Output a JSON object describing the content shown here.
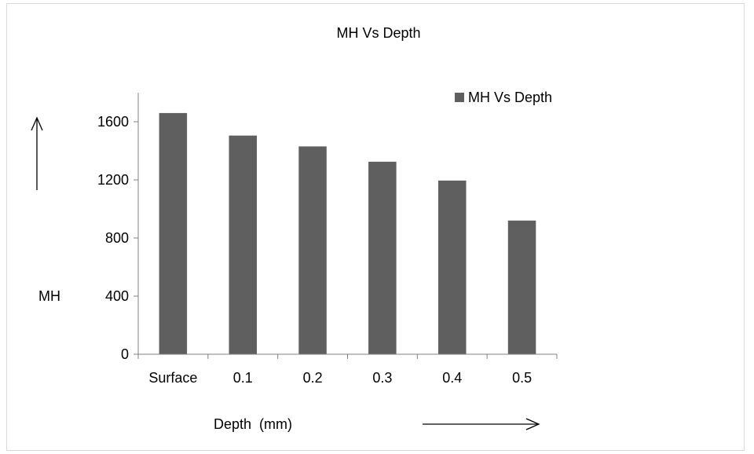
{
  "chart_data": {
    "type": "bar",
    "title": "MH Vs Depth",
    "xlabel": "Depth  (mm)",
    "ylabel": "MH",
    "categories": [
      "Surface",
      "0.1",
      "0.2",
      "0.3",
      "0.4",
      "0.5"
    ],
    "series": [
      {
        "name": "MH Vs Depth",
        "values": [
          1660,
          1505,
          1430,
          1325,
          1195,
          920
        ]
      }
    ],
    "ylim": [
      0,
      1800
    ],
    "yticks": [
      0,
      400,
      800,
      1200,
      1600
    ],
    "grid": false,
    "legend_position": "top-right",
    "bar_color": "#5f5f5f"
  }
}
